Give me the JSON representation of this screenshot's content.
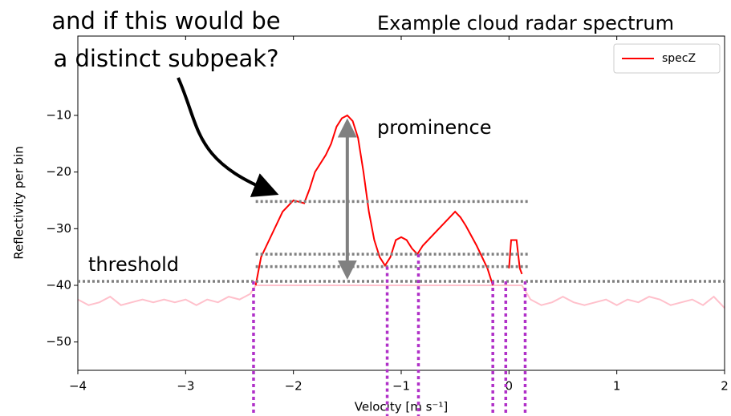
{
  "chart_data": {
    "type": "line",
    "title": "Example cloud radar spectrum",
    "xlabel": "Velocity [m s⁻¹]",
    "ylabel": "Reflectivity per bin",
    "annotation_lines": [
      "and if this would be",
      "a distinct subpeak?"
    ],
    "prominence_label": "prominence",
    "threshold_label": "threshold",
    "xlim": [
      -4,
      2
    ],
    "ylim": [
      -55,
      4
    ],
    "xticks": [
      {
        "value": -4,
        "label": "−4"
      },
      {
        "value": -3,
        "label": "−3"
      },
      {
        "value": -2,
        "label": "−2"
      },
      {
        "value": -1,
        "label": "−1"
      },
      0,
      1,
      2
    ],
    "yticks": [
      {
        "value": -50,
        "label": "−50"
      },
      {
        "value": -40,
        "label": "−40"
      },
      {
        "value": -30,
        "label": "−30"
      },
      {
        "value": -20,
        "label": "−20"
      },
      {
        "value": -10,
        "label": "−10"
      }
    ],
    "legend_position": "upper right",
    "series": [
      {
        "color": "#ffc0cb",
        "x": [
          -4,
          -3.9,
          -3.8,
          -3.7,
          -3.6,
          -3.5,
          -3.4,
          -3.3,
          -3.2,
          -3.1,
          -3.0,
          -2.9,
          -2.8,
          -2.7,
          -2.6,
          -2.5,
          -2.4,
          -2.35,
          0.12,
          0.2,
          0.3,
          0.4,
          0.5,
          0.6,
          0.7,
          0.8,
          0.9,
          1.0,
          1.1,
          1.2,
          1.3,
          1.4,
          1.5,
          1.6,
          1.7,
          1.8,
          1.9,
          2.0
        ],
        "values": [
          -42.5,
          -43.5,
          -43,
          -42,
          -43.5,
          -43,
          -42.5,
          -43,
          -42.5,
          -43,
          -42.5,
          -43.5,
          -42.5,
          -43,
          -42,
          -42.5,
          -41.5,
          -40,
          -40,
          -42.5,
          -43.5,
          -43,
          -42,
          -43,
          -43.5,
          -43,
          -42.5,
          -43.5,
          -42.5,
          -43,
          -42,
          -42.5,
          -43.5,
          -43,
          -42.5,
          -43.5,
          -42,
          -44
        ]
      },
      {
        "name": "specZ",
        "color": "#ff0000",
        "x": [
          -2.35,
          -2.3,
          -2.2,
          -2.1,
          -2.0,
          -1.9,
          -1.85,
          -1.8,
          -1.7,
          -1.65,
          -1.6,
          -1.55,
          -1.5,
          -1.45,
          -1.4,
          -1.35,
          -1.3,
          -1.25,
          -1.2,
          -1.15,
          -1.1,
          -1.05,
          -1.0,
          -0.95,
          -0.9,
          -0.85,
          -0.8,
          -0.7,
          -0.6,
          -0.5,
          -0.45,
          -0.4,
          -0.3,
          -0.2,
          -0.15,
          -0.1,
          0.0,
          0.02,
          0.07,
          0.1,
          0.12
        ],
        "values": [
          -40,
          -35,
          -31,
          -27,
          -25,
          -25.5,
          -23,
          -20,
          -17,
          -15,
          -12,
          -10.5,
          -10,
          -11,
          -14,
          -20,
          -27,
          -32,
          -35,
          -36.5,
          -35,
          -32,
          -31.5,
          -32,
          -33.5,
          -34.5,
          -33,
          -31,
          -29,
          -27,
          -28,
          -29.5,
          -33,
          -37,
          -40,
          null,
          -37,
          -32,
          -32,
          -37,
          -38
        ]
      }
    ],
    "hlines": [
      {
        "y": -39.3,
        "x": [
          -4,
          2
        ]
      },
      {
        "y": -25.2,
        "x": [
          -2.35,
          0.18
        ]
      },
      {
        "y": -34.5,
        "x": [
          -2.35,
          0.18
        ]
      },
      {
        "y": -36.7,
        "x": [
          -2.35,
          0.18
        ]
      }
    ],
    "vlines": [
      {
        "x": -2.37,
        "y": -39.3
      },
      {
        "x": -1.13,
        "y": -36.7
      },
      {
        "x": -0.84,
        "y": -34.5
      },
      {
        "x": -0.15,
        "y": -39.3
      },
      {
        "x": -0.03,
        "y": -39.3
      },
      {
        "x": 0.15,
        "y": -39.3
      }
    ],
    "prominence_arrow": {
      "x": -1.5,
      "y": [
        -10.5,
        -39
      ]
    }
  }
}
